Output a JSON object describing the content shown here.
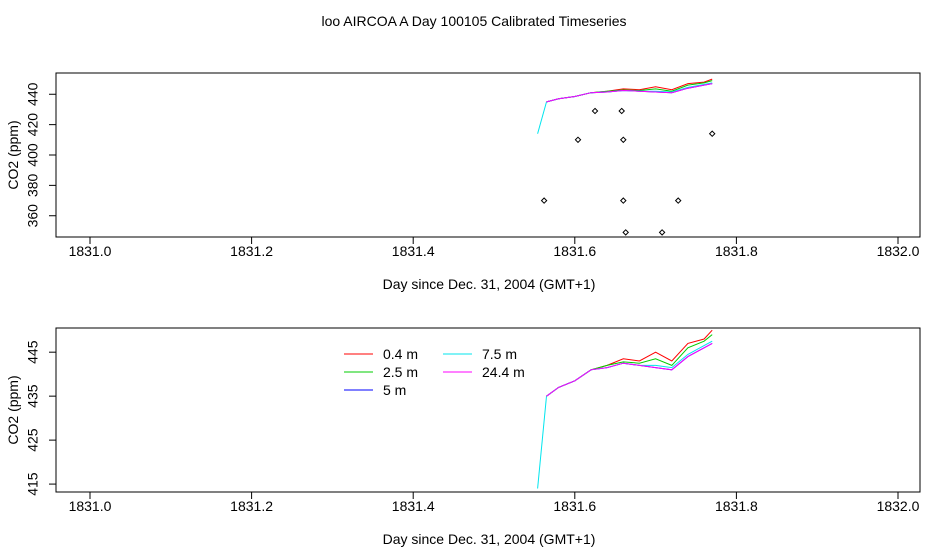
{
  "title": "loo AIRCOA A  Day 100105  Calibrated Timeseries",
  "chart_data": [
    {
      "type": "line",
      "xlabel": "Day since Dec. 31, 2004 (GMT+1)",
      "ylabel": "CO2 (ppm)",
      "xlim": [
        1831.0,
        1832.0
      ],
      "ylim": [
        346,
        454
      ],
      "xticks": [
        "1831.0",
        "1831.2",
        "1831.4",
        "1831.6",
        "1831.8",
        "1832.0"
      ],
      "xtick_values": [
        1831.0,
        1831.2,
        1831.4,
        1831.6,
        1831.8,
        1832.0
      ],
      "yticks": [
        "360",
        "380",
        "400",
        "420",
        "440"
      ],
      "ytick_values": [
        360,
        380,
        400,
        420,
        440
      ],
      "series": [
        {
          "color": "#00e5ee",
          "x": [
            1831.554,
            1831.565
          ],
          "y": [
            414,
            435
          ]
        },
        {
          "color": "#ff0000",
          "x": [
            1831.565,
            1831.58,
            1831.6,
            1831.62,
            1831.64,
            1831.66,
            1831.68,
            1831.7,
            1831.72,
            1831.74,
            1831.76,
            1831.77
          ],
          "y": [
            435,
            437,
            438.5,
            441,
            442,
            443.5,
            443,
            445,
            443,
            447,
            448,
            450
          ]
        },
        {
          "color": "#00cd00",
          "x": [
            1831.565,
            1831.58,
            1831.6,
            1831.62,
            1831.64,
            1831.66,
            1831.68,
            1831.7,
            1831.72,
            1831.74,
            1831.76,
            1831.77
          ],
          "y": [
            435,
            437,
            438.5,
            441,
            442,
            442.8,
            442.5,
            443.5,
            442,
            446,
            447.5,
            449
          ]
        },
        {
          "color": "#0000ff",
          "x": [
            1831.565,
            1831.58,
            1831.6,
            1831.62,
            1831.64,
            1831.66,
            1831.68,
            1831.7,
            1831.72,
            1831.74,
            1831.76,
            1831.77
          ],
          "y": [
            435,
            437,
            438.5,
            441,
            441.5,
            442.5,
            442,
            441.5,
            441,
            444,
            446,
            447
          ]
        },
        {
          "color": "#00e5ee",
          "x": [
            1831.565,
            1831.58,
            1831.6,
            1831.62,
            1831.64,
            1831.66,
            1831.68,
            1831.7,
            1831.72,
            1831.74,
            1831.76,
            1831.77
          ],
          "y": [
            435,
            437,
            438.5,
            441,
            441.5,
            442.5,
            442,
            442,
            441.5,
            444.5,
            446.5,
            447.5
          ]
        },
        {
          "color": "#ff00ff",
          "x": [
            1831.565,
            1831.58,
            1831.6,
            1831.62,
            1831.64,
            1831.66,
            1831.68,
            1831.7,
            1831.72,
            1831.74,
            1831.76,
            1831.77
          ],
          "y": [
            435,
            437,
            438.5,
            441,
            441.5,
            442.5,
            442,
            441.5,
            441,
            444,
            446,
            447
          ]
        }
      ],
      "points": [
        {
          "x": 1831.625,
          "y": 429
        },
        {
          "x": 1831.658,
          "y": 429
        },
        {
          "x": 1831.604,
          "y": 410
        },
        {
          "x": 1831.66,
          "y": 410
        },
        {
          "x": 1831.77,
          "y": 414
        },
        {
          "x": 1831.562,
          "y": 370
        },
        {
          "x": 1831.66,
          "y": 370
        },
        {
          "x": 1831.728,
          "y": 370
        },
        {
          "x": 1831.663,
          "y": 349
        },
        {
          "x": 1831.708,
          "y": 349
        }
      ]
    },
    {
      "type": "line",
      "xlabel": "Day since Dec. 31, 2004 (GMT+1)",
      "ylabel": "CO2 (ppm)",
      "xlim": [
        1831.0,
        1832.0
      ],
      "ylim": [
        413.2,
        450.5
      ],
      "xticks": [
        "1831.0",
        "1831.2",
        "1831.4",
        "1831.6",
        "1831.8",
        "1832.0"
      ],
      "xtick_values": [
        1831.0,
        1831.2,
        1831.4,
        1831.6,
        1831.8,
        1832.0
      ],
      "yticks": [
        "415",
        "425",
        "435",
        "445"
      ],
      "ytick_values": [
        415,
        425,
        435,
        445
      ],
      "legend": {
        "position": "top-left",
        "entries": [
          {
            "label": "0.4 m",
            "color": "#ff0000"
          },
          {
            "label": "2.5 m",
            "color": "#00cd00"
          },
          {
            "label": "5 m",
            "color": "#0000ff"
          },
          {
            "label": "7.5 m",
            "color": "#00e5ee"
          },
          {
            "label": "24.4 m",
            "color": "#ff00ff"
          }
        ]
      },
      "series": [
        {
          "name": "7.5 m",
          "color": "#00e5ee",
          "x": [
            1831.554,
            1831.565
          ],
          "y": [
            414,
            435
          ]
        },
        {
          "name": "0.4 m",
          "color": "#ff0000",
          "x": [
            1831.565,
            1831.58,
            1831.6,
            1831.62,
            1831.64,
            1831.66,
            1831.68,
            1831.7,
            1831.72,
            1831.74,
            1831.76,
            1831.77
          ],
          "y": [
            435,
            437,
            438.5,
            441,
            442,
            443.5,
            443,
            445,
            443,
            447,
            448,
            450
          ]
        },
        {
          "name": "2.5 m",
          "color": "#00cd00",
          "x": [
            1831.565,
            1831.58,
            1831.6,
            1831.62,
            1831.64,
            1831.66,
            1831.68,
            1831.7,
            1831.72,
            1831.74,
            1831.76,
            1831.77
          ],
          "y": [
            435,
            437,
            438.5,
            441,
            442,
            442.8,
            442.5,
            443.5,
            442,
            446,
            447.5,
            449
          ]
        },
        {
          "name": "5 m",
          "color": "#0000ff",
          "x": [
            1831.565,
            1831.58,
            1831.6,
            1831.62,
            1831.64,
            1831.66,
            1831.68,
            1831.7,
            1831.72,
            1831.74,
            1831.76,
            1831.77
          ],
          "y": [
            435,
            437,
            438.5,
            441,
            441.5,
            442.5,
            442,
            441.5,
            441,
            444,
            446,
            447
          ]
        },
        {
          "name": "7.5 m",
          "color": "#00e5ee",
          "x": [
            1831.565,
            1831.58,
            1831.6,
            1831.62,
            1831.64,
            1831.66,
            1831.68,
            1831.7,
            1831.72,
            1831.74,
            1831.76,
            1831.77
          ],
          "y": [
            435,
            437,
            438.5,
            441,
            441.5,
            442.5,
            442,
            442,
            441.5,
            444.5,
            446.5,
            447.5
          ]
        },
        {
          "name": "24.4 m",
          "color": "#ff00ff",
          "x": [
            1831.565,
            1831.58,
            1831.6,
            1831.62,
            1831.64,
            1831.66,
            1831.68,
            1831.7,
            1831.72,
            1831.74,
            1831.76,
            1831.77
          ],
          "y": [
            435,
            437,
            438.5,
            441,
            441.5,
            442.5,
            442,
            441.5,
            441,
            444,
            446,
            447
          ]
        }
      ],
      "points": []
    }
  ]
}
